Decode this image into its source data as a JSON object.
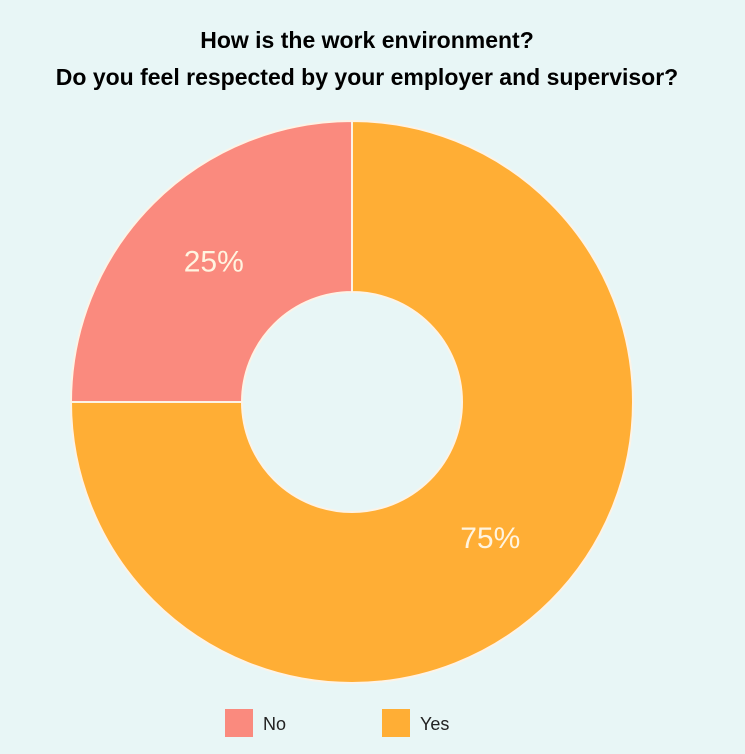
{
  "chart_data": {
    "type": "pie",
    "title": [
      "How is the work environment?",
      "Do you feel respected by your employer and supervisor?"
    ],
    "categories": [
      "No",
      "Yes"
    ],
    "values": [
      25,
      75
    ],
    "value_labels": [
      "25%",
      "75%"
    ],
    "colors": [
      "#fa8a7e",
      "#ffae35"
    ],
    "donut": true,
    "legend": "bottom"
  }
}
